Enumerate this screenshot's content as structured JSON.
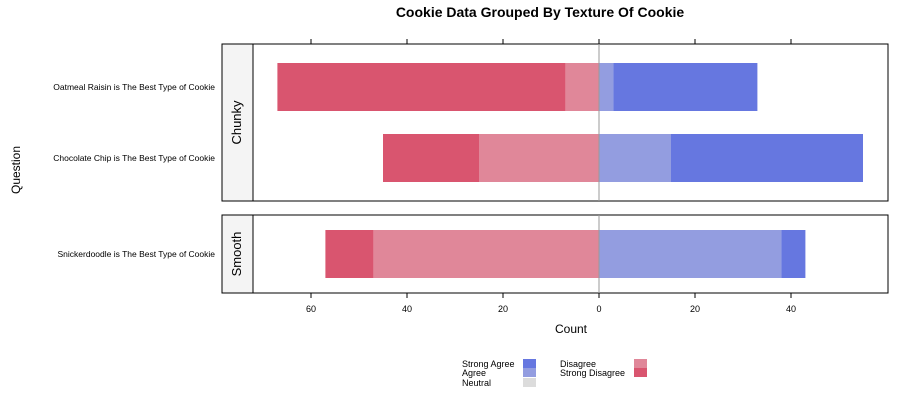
{
  "chart_data": {
    "type": "bar",
    "orientation": "horizontal-diverging",
    "title": "Cookie Data Grouped By Texture Of Cookie",
    "xlabel": "Count",
    "ylabel": "Question",
    "x_ticks": [
      "60",
      "40",
      "20",
      "0",
      "20",
      "40"
    ],
    "x_tick_values": [
      -60,
      -40,
      -20,
      0,
      20,
      40
    ],
    "xlim": [
      -72,
      60
    ],
    "panels": [
      {
        "label": "Chunky",
        "rows": [
          {
            "label": "Oatmeal Raisin is The Best Type of Cookie",
            "values": {
              "Strong Disagree": 60,
              "Disagree": 7,
              "Neutral": 0,
              "Agree": 3,
              "Strong Agree": 30
            }
          },
          {
            "label": "Chocolate Chip is The Best Type of Cookie",
            "values": {
              "Strong Disagree": 20,
              "Disagree": 25,
              "Neutral": 0,
              "Agree": 15,
              "Strong Agree": 40
            }
          }
        ]
      },
      {
        "label": "Smooth",
        "rows": [
          {
            "label": "Snickerdoodle is The Best Type of Cookie",
            "values": {
              "Strong Disagree": 10,
              "Disagree": 47,
              "Neutral": 0,
              "Agree": 38,
              "Strong Agree": 5
            }
          }
        ]
      }
    ],
    "series": [
      {
        "name": "Strong Agree",
        "color": "#6677e0"
      },
      {
        "name": "Agree",
        "color": "#939de0"
      },
      {
        "name": "Neutral",
        "color": "#dcdcdc"
      },
      {
        "name": "Disagree",
        "color": "#e08799"
      },
      {
        "name": "Strong Disagree",
        "color": "#d9556f"
      }
    ],
    "legend_position": "bottom",
    "grid": false
  }
}
